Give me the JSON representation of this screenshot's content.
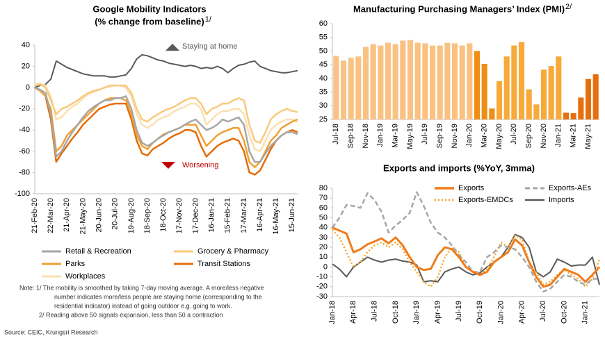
{
  "chart_data": [
    {
      "type": "line",
      "title": "Google Mobility Indicators",
      "subtitle": "(% change from baseline)",
      "title_note": "1/",
      "categories": [
        "21-Feb-20",
        null,
        null,
        "22-Mar-20",
        null,
        null,
        "21-Apr-20",
        null,
        null,
        "21-May-20",
        null,
        null,
        "20-Jun-20",
        null,
        null,
        "20-Jul-20",
        null,
        null,
        "19-Aug-20",
        null,
        null,
        "18-Sep-20",
        null,
        null,
        "18-Oct-20",
        null,
        null,
        "17-Nov-20",
        null,
        null,
        "17-Dec-20",
        null,
        null,
        "16-Jan-21",
        null,
        null,
        "15-Feb-21",
        null,
        null,
        "17-Mar-21",
        null,
        null,
        "16-Apr-21",
        null,
        null,
        "16-May-21",
        null,
        null,
        "15-Jun-21",
        null
      ],
      "ylim": [
        -100,
        40
      ],
      "yticks": [
        -100,
        -80,
        -60,
        -40,
        -20,
        0,
        20,
        40
      ],
      "annotations": [
        {
          "text": "Staying at home",
          "color": "#595959"
        },
        {
          "text": "Worsening",
          "color": "#C00000"
        }
      ],
      "series": [
        {
          "name": "Retail & Recreation",
          "color": "#A6A6A6",
          "width": 2.5,
          "values": [
            0,
            -2,
            -5,
            -25,
            -65,
            -60,
            -50,
            -42,
            -35,
            -28,
            -22,
            -18,
            -15,
            -12,
            -12,
            -10,
            -10,
            -8,
            -20,
            -40,
            -52,
            -55,
            -52,
            -48,
            -45,
            -42,
            -40,
            -38,
            -35,
            -32,
            -30,
            -35,
            -40,
            -38,
            -35,
            -30,
            -32,
            -30,
            -28,
            -35,
            -60,
            -70,
            -70,
            -62,
            -55,
            -50,
            -45,
            -42,
            -42,
            -44
          ]
        },
        {
          "name": "Grocery & Pharmacy",
          "color": "#F9C97C",
          "width": 2.5,
          "values": [
            2,
            3,
            0,
            -12,
            -25,
            -20,
            -18,
            -15,
            -12,
            -8,
            -5,
            -3,
            -2,
            0,
            2,
            2,
            2,
            2,
            -5,
            -20,
            -30,
            -32,
            -28,
            -25,
            -22,
            -20,
            -18,
            -15,
            -12,
            -10,
            -10,
            -15,
            -25,
            -20,
            -18,
            -15,
            -15,
            -12,
            -10,
            -12,
            -35,
            -50,
            -52,
            -42,
            -30,
            -25,
            -22,
            -20,
            -22,
            -23
          ]
        },
        {
          "name": "Parks",
          "color": "#F0A030",
          "width": 2.5,
          "values": [
            0,
            -3,
            -8,
            -20,
            -60,
            -55,
            -45,
            -40,
            -35,
            -30,
            -25,
            -20,
            -15,
            -12,
            -10,
            -10,
            -10,
            -12,
            -25,
            -45,
            -55,
            -58,
            -52,
            -48,
            -44,
            -42,
            -40,
            -38,
            -35,
            -35,
            -35,
            -45,
            -55,
            -50,
            -45,
            -42,
            -40,
            -38,
            -38,
            -50,
            -70,
            -75,
            -70,
            -60,
            -50,
            -45,
            -38,
            -35,
            -32,
            -30
          ]
        },
        {
          "name": "Transit Stations",
          "color": "#E46C0A",
          "width": 2.5,
          "values": [
            0,
            -3,
            -8,
            -30,
            -70,
            -62,
            -55,
            -48,
            -42,
            -35,
            -30,
            -25,
            -20,
            -18,
            -16,
            -15,
            -15,
            -15,
            -30,
            -50,
            -62,
            -64,
            -58,
            -55,
            -52,
            -48,
            -45,
            -43,
            -40,
            -40,
            -42,
            -55,
            -65,
            -60,
            -55,
            -52,
            -50,
            -48,
            -50,
            -60,
            -80,
            -82,
            -78,
            -68,
            -58,
            -50,
            -45,
            -42,
            -40,
            -42
          ]
        },
        {
          "name": "Workplaces",
          "color": "#FBE0B0",
          "width": 2.5,
          "values": [
            3,
            4,
            2,
            -8,
            -30,
            -28,
            -22,
            -18,
            -15,
            -10,
            -6,
            -4,
            -2,
            0,
            1,
            2,
            2,
            0,
            -8,
            -25,
            -35,
            -38,
            -35,
            -30,
            -28,
            -26,
            -22,
            -20,
            -18,
            -15,
            -15,
            -20,
            -35,
            -30,
            -25,
            -22,
            -22,
            -20,
            -20,
            -25,
            -45,
            -58,
            -60,
            -50,
            -40,
            -35,
            -32,
            -30,
            -30,
            -33
          ]
        },
        {
          "color": "#595959",
          "width": 2,
          "values": [
            0,
            2,
            3,
            8,
            25,
            22,
            19,
            17,
            15,
            13,
            12,
            11,
            11,
            11,
            10,
            10,
            11,
            12,
            18,
            27,
            31,
            30,
            28,
            26,
            25,
            23,
            22,
            21,
            20,
            21,
            20,
            18,
            19,
            18,
            20,
            18,
            14,
            18,
            21,
            22,
            24,
            25,
            20,
            18,
            16,
            15,
            14,
            14,
            15,
            16
          ]
        }
      ]
    },
    {
      "type": "bar",
      "title": "Manufacturing Purchasing Managers’ Index (PMI)",
      "title_note": "2/",
      "categories": [
        "Jul-18",
        null,
        "Sep-18",
        null,
        "Nov-18",
        null,
        "Jan-19",
        null,
        "Mar-19",
        null,
        "May-19",
        null,
        "Jul-19",
        null,
        "Sep-19",
        null,
        "Nov-19",
        null,
        "Jan-20",
        null,
        "Mar-20",
        null,
        "May-20",
        null,
        "Jul-20",
        null,
        "Sep-20",
        null,
        "Nov-20",
        null,
        "Jan-21",
        null,
        "Mar-21",
        null,
        "May-21",
        null
      ],
      "values": [
        48.2,
        46.5,
        47.5,
        48,
        51.5,
        52.5,
        52,
        53,
        52.5,
        53.8,
        54,
        53,
        52.8,
        52,
        52,
        53,
        52.8,
        52,
        52.8,
        50,
        45.3,
        29,
        39,
        48,
        52,
        53.3,
        36,
        30.5,
        43.2,
        44.5,
        48,
        27.5,
        27.3,
        33,
        39.8,
        41.5
      ],
      "colors": [
        "#F9C282",
        "#F9C282",
        "#F9C282",
        "#F9C282",
        "#F9C282",
        "#F9C282",
        "#F9C282",
        "#F9C282",
        "#F9C282",
        "#F9C282",
        "#F9C282",
        "#F9C282",
        "#F9C282",
        "#F9C282",
        "#F9C282",
        "#F9C282",
        "#F9C282",
        "#F9C282",
        "#F9C282",
        "#EE8E14",
        "#EE8E14",
        "#EE8E14",
        "#F7A93A",
        "#F7A93A",
        "#F7A93A",
        "#F7A93A",
        "#F7A93A",
        "#F7A93A",
        "#F7A93A",
        "#F7A93A",
        "#F7A93A",
        "#E56F0F",
        "#E56F0F",
        "#E56F0F",
        "#E56F0F",
        "#E56F0F"
      ],
      "ylim": [
        25,
        60
      ],
      "yticks": [
        25,
        30,
        35,
        40,
        45,
        50,
        55,
        60
      ]
    },
    {
      "type": "line",
      "title": "Exports and imports (%YoY, 3mma)",
      "categories": [
        "Jan-18",
        null,
        null,
        "Apr-18",
        null,
        null,
        "Jul-18",
        null,
        null,
        "Oct-18",
        null,
        null,
        "Jan-19",
        null,
        null,
        "Apr-19",
        null,
        null,
        "Jul-19",
        null,
        null,
        "Oct-19",
        null,
        null,
        "Jan-20",
        null,
        null,
        "Apr-20",
        null,
        null,
        "Jul-20",
        null,
        null,
        "Oct-20",
        null,
        null,
        "Jan-21",
        null,
        null
      ],
      "ylim": [
        -30,
        80
      ],
      "yticks": [
        -30,
        -20,
        -10,
        0,
        10,
        20,
        30,
        40,
        50,
        60,
        70,
        80
      ],
      "series": [
        {
          "name": "Exports",
          "color": "#F07C1A",
          "width": 3,
          "values": [
            40,
            37,
            34,
            15,
            18,
            23,
            26,
            29,
            24,
            30,
            22,
            10,
            0,
            -3,
            -2,
            12,
            20,
            18,
            10,
            0,
            -5,
            -8,
            -5,
            5,
            10,
            15,
            28,
            22,
            5,
            -10,
            -20,
            -18,
            -10,
            -2,
            -5,
            -8,
            -15,
            -8,
            0
          ]
        },
        {
          "name": "Exports-AEs",
          "color": "#A6A6A6",
          "width": 2.5,
          "dash": "dashed",
          "values": [
            40,
            50,
            63,
            62,
            60,
            75,
            68,
            56,
            35,
            42,
            48,
            55,
            76,
            62,
            45,
            35,
            30,
            22,
            12,
            5,
            -5,
            -5,
            10,
            15,
            22,
            20,
            18,
            10,
            0,
            -15,
            -25,
            -22,
            -15,
            -8,
            -10,
            -15,
            -18,
            -12,
            -12
          ]
        },
        {
          "name": "Exports-EMDCs",
          "color": "#F5A623",
          "width": 2.5,
          "dash": "dotted",
          "values": [
            38,
            30,
            15,
            0,
            5,
            15,
            22,
            25,
            20,
            25,
            18,
            5,
            -5,
            -15,
            -20,
            -10,
            10,
            20,
            15,
            0,
            -5,
            -8,
            -2,
            10,
            25,
            20,
            32,
            28,
            5,
            -5,
            -18,
            -15,
            -8,
            -3,
            -8,
            -12,
            -20,
            -12,
            8
          ]
        },
        {
          "name": "Imports",
          "color": "#595959",
          "width": 2,
          "values": [
            3,
            -2,
            -10,
            0,
            5,
            10,
            7,
            5,
            7,
            8,
            6,
            5,
            2,
            -15,
            -14,
            -15,
            -5,
            -2,
            0,
            -5,
            -8,
            -6,
            0,
            5,
            10,
            20,
            33,
            30,
            20,
            -5,
            -10,
            -5,
            8,
            5,
            1,
            2,
            2,
            10,
            -18
          ]
        }
      ]
    }
  ],
  "note": [
    "Note: 1/ The mobility is smoothed by taking 7-day moving average. A more/less negative",
    "number indicates more/less people are staying home (corresponding to the",
    "residential indicator) instead of going outdoor e.g. going to work.",
    "2/ Reading above 50 signals expansion, less than 50 a contraction"
  ],
  "source": "Source: CEIC, Krungsri Research"
}
